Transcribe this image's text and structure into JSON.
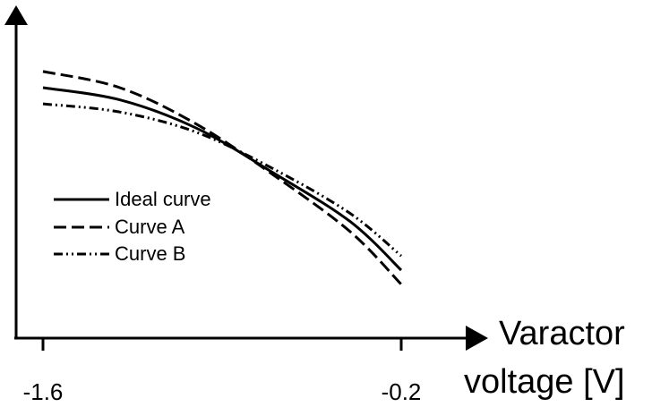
{
  "chart_data": {
    "type": "line",
    "title": "",
    "xlabel_line1": "Varactor",
    "xlabel_line2": "voltage [V]",
    "ylabel": "",
    "x_ticks": [
      {
        "value": -1.6,
        "label": "-1.6"
      },
      {
        "value": -0.2,
        "label": "-0.2"
      }
    ],
    "xlim": [
      -1.6,
      -0.2
    ],
    "grid": false,
    "legend_position": "left-middle",
    "series": [
      {
        "name": "Ideal curve",
        "line_style": "solid",
        "x": [
          -1.6,
          -1.3,
          -1.0,
          -0.7,
          -0.4,
          -0.2
        ],
        "y": [
          0.9,
          0.84,
          0.7,
          0.48,
          0.24,
          0.0
        ]
      },
      {
        "name": "Curve A",
        "line_style": "dashed",
        "x": [
          -1.6,
          -1.3,
          -1.0,
          -0.7,
          -0.4,
          -0.2
        ],
        "y": [
          0.98,
          0.9,
          0.72,
          0.47,
          0.19,
          -0.07
        ]
      },
      {
        "name": "Curve B",
        "line_style": "dashdotdot",
        "x": [
          -1.6,
          -1.3,
          -1.0,
          -0.7,
          -0.4,
          -0.2
        ],
        "y": [
          0.82,
          0.78,
          0.68,
          0.5,
          0.28,
          0.07
        ]
      }
    ],
    "colors": {
      "line": "#000000",
      "axis": "#000000"
    }
  }
}
